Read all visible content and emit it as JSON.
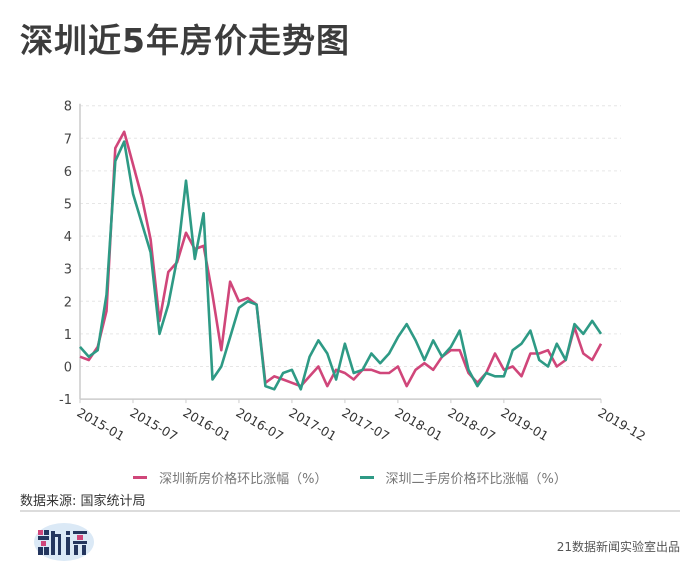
{
  "title": "深圳近5年房价走势图",
  "source": "数据来源: 国家统计局",
  "credit": "21数据新闻实验室出品",
  "logo": {
    "name": "数读",
    "colors": {
      "navy": "#24365e",
      "pink": "#d0467a",
      "blob": "#dbe9f6"
    }
  },
  "colors": {
    "new_house": "#d0467a",
    "second_hand": "#2e9a85",
    "grid": "#e6e6e6",
    "axis": "#cccccc"
  },
  "legend": [
    {
      "label": "深圳新房价格环比涨幅（%）",
      "color": "#d0467a"
    },
    {
      "label": "深圳二手房价格环比涨幅（%）",
      "color": "#2e9a85"
    }
  ],
  "chart_data": {
    "type": "line",
    "title": "深圳近5年房价走势图",
    "xlabel": "",
    "ylabel": "",
    "ylim": [
      -1,
      8
    ],
    "yticks": [
      -1,
      0,
      1,
      2,
      3,
      4,
      5,
      6,
      7,
      8
    ],
    "xticks": [
      "2015-01",
      "2015-07",
      "2016-01",
      "2016-07",
      "2017-01",
      "2017-07",
      "2018-01",
      "2018-07",
      "2019-01",
      "2019-12"
    ],
    "x_start": "2015-01",
    "x_end": "2019-12",
    "grid": true,
    "legend_position": "bottom",
    "x": [
      "2015-01",
      "2015-02",
      "2015-03",
      "2015-04",
      "2015-05",
      "2015-06",
      "2015-07",
      "2015-08",
      "2015-09",
      "2015-10",
      "2015-11",
      "2015-12",
      "2016-01",
      "2016-02",
      "2016-03",
      "2016-04",
      "2016-05",
      "2016-06",
      "2016-07",
      "2016-08",
      "2016-09",
      "2016-10",
      "2016-11",
      "2016-12",
      "2017-01",
      "2017-02",
      "2017-03",
      "2017-04",
      "2017-05",
      "2017-06",
      "2017-07",
      "2017-08",
      "2017-09",
      "2017-10",
      "2017-11",
      "2017-12",
      "2018-01",
      "2018-02",
      "2018-03",
      "2018-04",
      "2018-05",
      "2018-06",
      "2018-07",
      "2018-08",
      "2018-09",
      "2018-10",
      "2018-11",
      "2018-12",
      "2019-01",
      "2019-02",
      "2019-03",
      "2019-04",
      "2019-05",
      "2019-06",
      "2019-07",
      "2019-08",
      "2019-09",
      "2019-10",
      "2019-11",
      "2019-12"
    ],
    "series": [
      {
        "name": "深圳新房价格环比涨幅（%）",
        "color": "#d0467a",
        "values": [
          0.3,
          0.2,
          0.6,
          1.7,
          6.7,
          7.2,
          6.2,
          5.2,
          3.9,
          1.4,
          2.9,
          3.2,
          4.1,
          3.6,
          3.7,
          2.2,
          0.5,
          2.6,
          2.0,
          2.1,
          1.9,
          -0.5,
          -0.3,
          -0.4,
          -0.5,
          -0.6,
          -0.3,
          0.0,
          -0.6,
          -0.1,
          -0.2,
          -0.4,
          -0.1,
          -0.1,
          -0.2,
          -0.2,
          0.0,
          -0.6,
          -0.1,
          0.1,
          -0.1,
          0.3,
          0.5,
          0.5,
          -0.2,
          -0.5,
          -0.2,
          0.4,
          -0.1,
          0.0,
          -0.3,
          0.4,
          0.4,
          0.5,
          0.0,
          0.2,
          1.2,
          0.4,
          0.2,
          0.7
        ]
      },
      {
        "name": "深圳二手房价格环比涨幅（%）",
        "color": "#2e9a85",
        "values": [
          0.6,
          0.3,
          0.5,
          2.2,
          6.3,
          6.9,
          5.3,
          4.4,
          3.5,
          1.0,
          1.9,
          3.3,
          5.7,
          3.3,
          4.7,
          -0.4,
          0.0,
          0.9,
          1.8,
          2.0,
          1.9,
          -0.6,
          -0.7,
          -0.2,
          -0.1,
          -0.7,
          0.3,
          0.8,
          0.4,
          -0.4,
          0.7,
          -0.2,
          -0.1,
          0.4,
          0.1,
          0.4,
          0.9,
          1.3,
          0.8,
          0.2,
          0.8,
          0.3,
          0.6,
          1.1,
          -0.1,
          -0.6,
          -0.2,
          -0.3,
          -0.3,
          0.5,
          0.7,
          1.1,
          0.2,
          0.0,
          0.7,
          0.2,
          1.3,
          1.0,
          1.4,
          1.0
        ]
      }
    ]
  }
}
